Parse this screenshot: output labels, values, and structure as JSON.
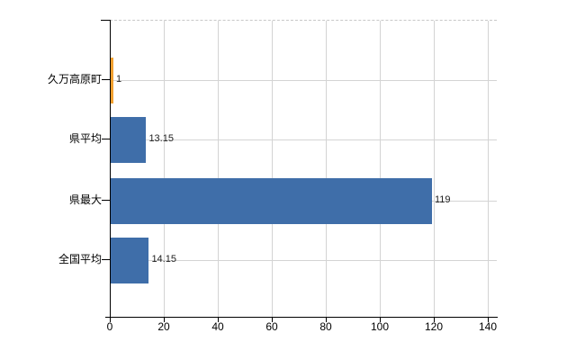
{
  "chart_data": {
    "type": "bar",
    "orientation": "horizontal",
    "categories": [
      "久万高原町",
      "県平均",
      "県最大",
      "全国平均"
    ],
    "values": [
      1,
      13.15,
      119,
      14.15
    ],
    "value_labels": [
      "1",
      "13.15",
      "119",
      "14.15"
    ],
    "bar_colors": [
      "#f2a030",
      "#3f6ea9",
      "#3f6ea9",
      "#3f6ea9"
    ],
    "x_tick_labels": [
      "0",
      "20",
      "40",
      "60",
      "80",
      "100",
      "120",
      "140"
    ],
    "x_tick_values": [
      0,
      20,
      40,
      60,
      80,
      100,
      120,
      140
    ],
    "xlim": [
      0,
      143
    ],
    "grid": true,
    "legend": "none"
  },
  "colors": {
    "bar_blue": "#3f6ea9",
    "bar_orange": "#f2a030",
    "gridline": "#d4d4d4",
    "plot_top_border": "#c8c8c8",
    "axis": "#000000",
    "text": "#000000"
  }
}
